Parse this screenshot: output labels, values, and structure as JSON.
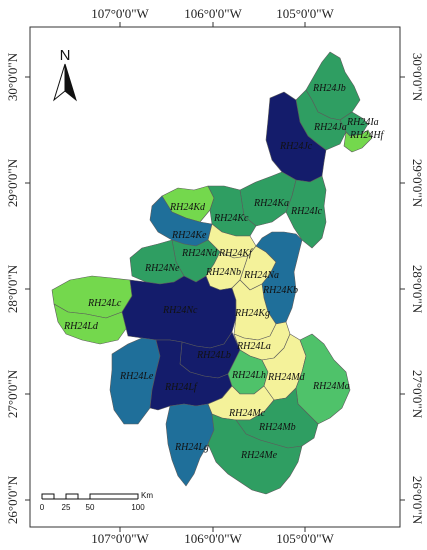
{
  "map": {
    "top_ticks": [
      "107°0'0\"W",
      "106°0'0\"W",
      "105°0'0\"W"
    ],
    "bottom_ticks": [
      "107°0'0\"W",
      "106°0'0\"W",
      "105°0'0\"W"
    ],
    "left_ticks": [
      "30°0'0\"N",
      "29°0'0\"N",
      "28°0'0\"N",
      "27°0'0\"N",
      "26°0'0\"N"
    ],
    "right_ticks": [
      "30°0'0\"N",
      "29°0'0\"N",
      "28°0'0\"N",
      "27°0'0\"N",
      "26°0'0\"N"
    ],
    "north_label": "N",
    "scale_bar": {
      "labels": [
        "0",
        "25",
        "50",
        "100"
      ],
      "unit": "Km"
    },
    "colors": {
      "dark_navy": "#141c6b",
      "steel_blue": "#1f6f9a",
      "green": "#2f9e62",
      "light_green": "#4fc26a",
      "bright_green": "#74d84d",
      "pale_yellow": "#f4f29a",
      "border": "#5b5b5b"
    },
    "regions": [
      {
        "code": "RH24Jb",
        "color": "green"
      },
      {
        "code": "RH24Ia",
        "color": "green"
      },
      {
        "code": "RH24Ja",
        "color": "green"
      },
      {
        "code": "RH24Hf",
        "color": "bright_green"
      },
      {
        "code": "RH24Jc",
        "color": "dark_navy"
      },
      {
        "code": "RH24Kd",
        "color": "bright_green"
      },
      {
        "code": "RH24Ka",
        "color": "green"
      },
      {
        "code": "RH24Kc",
        "color": "green"
      },
      {
        "code": "RH24Ic",
        "color": "green"
      },
      {
        "code": "RH24Ke",
        "color": "steel_blue"
      },
      {
        "code": "RH24Kf",
        "color": "pale_yellow"
      },
      {
        "code": "RH24Nd",
        "color": "green"
      },
      {
        "code": "RH24Ne",
        "color": "green"
      },
      {
        "code": "RH24Nb",
        "color": "pale_yellow"
      },
      {
        "code": "RH24Na",
        "color": "pale_yellow"
      },
      {
        "code": "RH24Kb",
        "color": "steel_blue"
      },
      {
        "code": "RH24Lc",
        "color": "bright_green"
      },
      {
        "code": "RH24Nc",
        "color": "dark_navy"
      },
      {
        "code": "RH24Kg",
        "color": "pale_yellow"
      },
      {
        "code": "RH24Ld",
        "color": "bright_green"
      },
      {
        "code": "RH24La",
        "color": "pale_yellow"
      },
      {
        "code": "RH24Lb",
        "color": "dark_navy"
      },
      {
        "code": "RH24Lh",
        "color": "light_green"
      },
      {
        "code": "RH24Le",
        "color": "steel_blue"
      },
      {
        "code": "RH24Md",
        "color": "pale_yellow"
      },
      {
        "code": "RH24Ma",
        "color": "light_green"
      },
      {
        "code": "RH24Lf",
        "color": "dark_navy"
      },
      {
        "code": "RH24Mc",
        "color": "pale_yellow"
      },
      {
        "code": "RH24Mb",
        "color": "green"
      },
      {
        "code": "RH24Lg",
        "color": "steel_blue"
      },
      {
        "code": "RH24Me",
        "color": "green"
      }
    ]
  }
}
